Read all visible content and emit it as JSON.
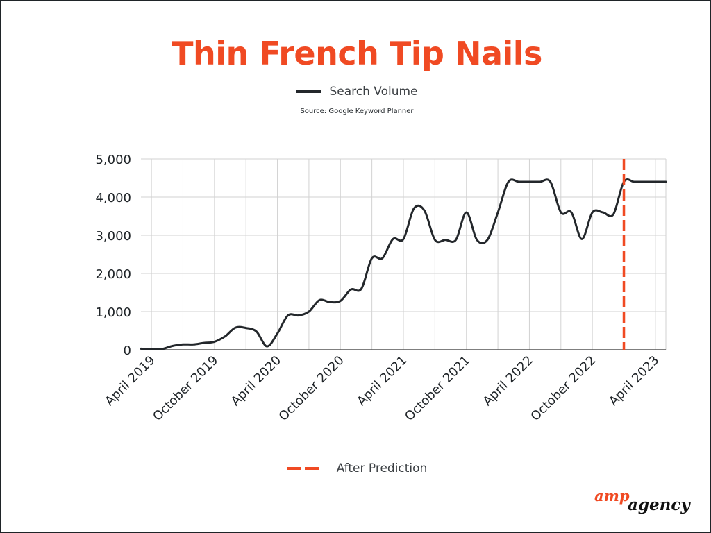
{
  "chart_data": {
    "type": "line",
    "title": "Thin French Tip Nails",
    "source": "Source: Google Keyword Planner",
    "xlabel": "",
    "ylabel": "",
    "ylim": [
      0,
      5000
    ],
    "y_ticks": [
      0,
      1000,
      2000,
      3000,
      4000,
      5000
    ],
    "y_tick_labels": [
      "0",
      "1,000",
      "2,000",
      "3,000",
      "4,000",
      "5,000"
    ],
    "x_tick_labels": [
      "April 2019",
      "October 2019",
      "April 2020",
      "October 2020",
      "April 2021",
      "October 2021",
      "April 2022",
      "October 2022",
      "April 2023"
    ],
    "x_tick_months": [
      "2019-04",
      "2019-10",
      "2020-04",
      "2020-10",
      "2021-04",
      "2021-10",
      "2022-04",
      "2022-10",
      "2023-04"
    ],
    "grid": true,
    "series": [
      {
        "name": "Search Volume",
        "color": "#23272b",
        "x": [
          "2019-03",
          "2019-04",
          "2019-05",
          "2019-06",
          "2019-07",
          "2019-08",
          "2019-09",
          "2019-10",
          "2019-11",
          "2019-12",
          "2020-01",
          "2020-02",
          "2020-03",
          "2020-04",
          "2020-05",
          "2020-06",
          "2020-07",
          "2020-08",
          "2020-09",
          "2020-10",
          "2020-11",
          "2020-12",
          "2021-01",
          "2021-02",
          "2021-03",
          "2021-04",
          "2021-05",
          "2021-06",
          "2021-07",
          "2021-08",
          "2021-09",
          "2021-10",
          "2021-11",
          "2021-12",
          "2022-01",
          "2022-02",
          "2022-03",
          "2022-04",
          "2022-05",
          "2022-06",
          "2022-07",
          "2022-08",
          "2022-09",
          "2022-10",
          "2022-11",
          "2022-12",
          "2023-01",
          "2023-02",
          "2023-03",
          "2023-04",
          "2023-05"
        ],
        "values": [
          30,
          10,
          20,
          100,
          140,
          140,
          180,
          210,
          350,
          580,
          570,
          480,
          90,
          430,
          900,
          900,
          1000,
          1300,
          1250,
          1280,
          1580,
          1600,
          2400,
          2400,
          2900,
          2900,
          3700,
          3650,
          2880,
          2880,
          2880,
          3600,
          2880,
          2880,
          3600,
          4400,
          4400,
          4400,
          4400,
          4400,
          3600,
          3600,
          2900,
          3600,
          3600,
          3550,
          4400,
          4400,
          4400,
          4400,
          4400
        ]
      }
    ],
    "prediction_marker": {
      "name": "After Prediction",
      "x": "2023-01",
      "color": "#f04a23"
    }
  },
  "brand": {
    "logo_part1": "amp",
    "logo_part2": "agency",
    "accent_color": "#f04a23"
  }
}
